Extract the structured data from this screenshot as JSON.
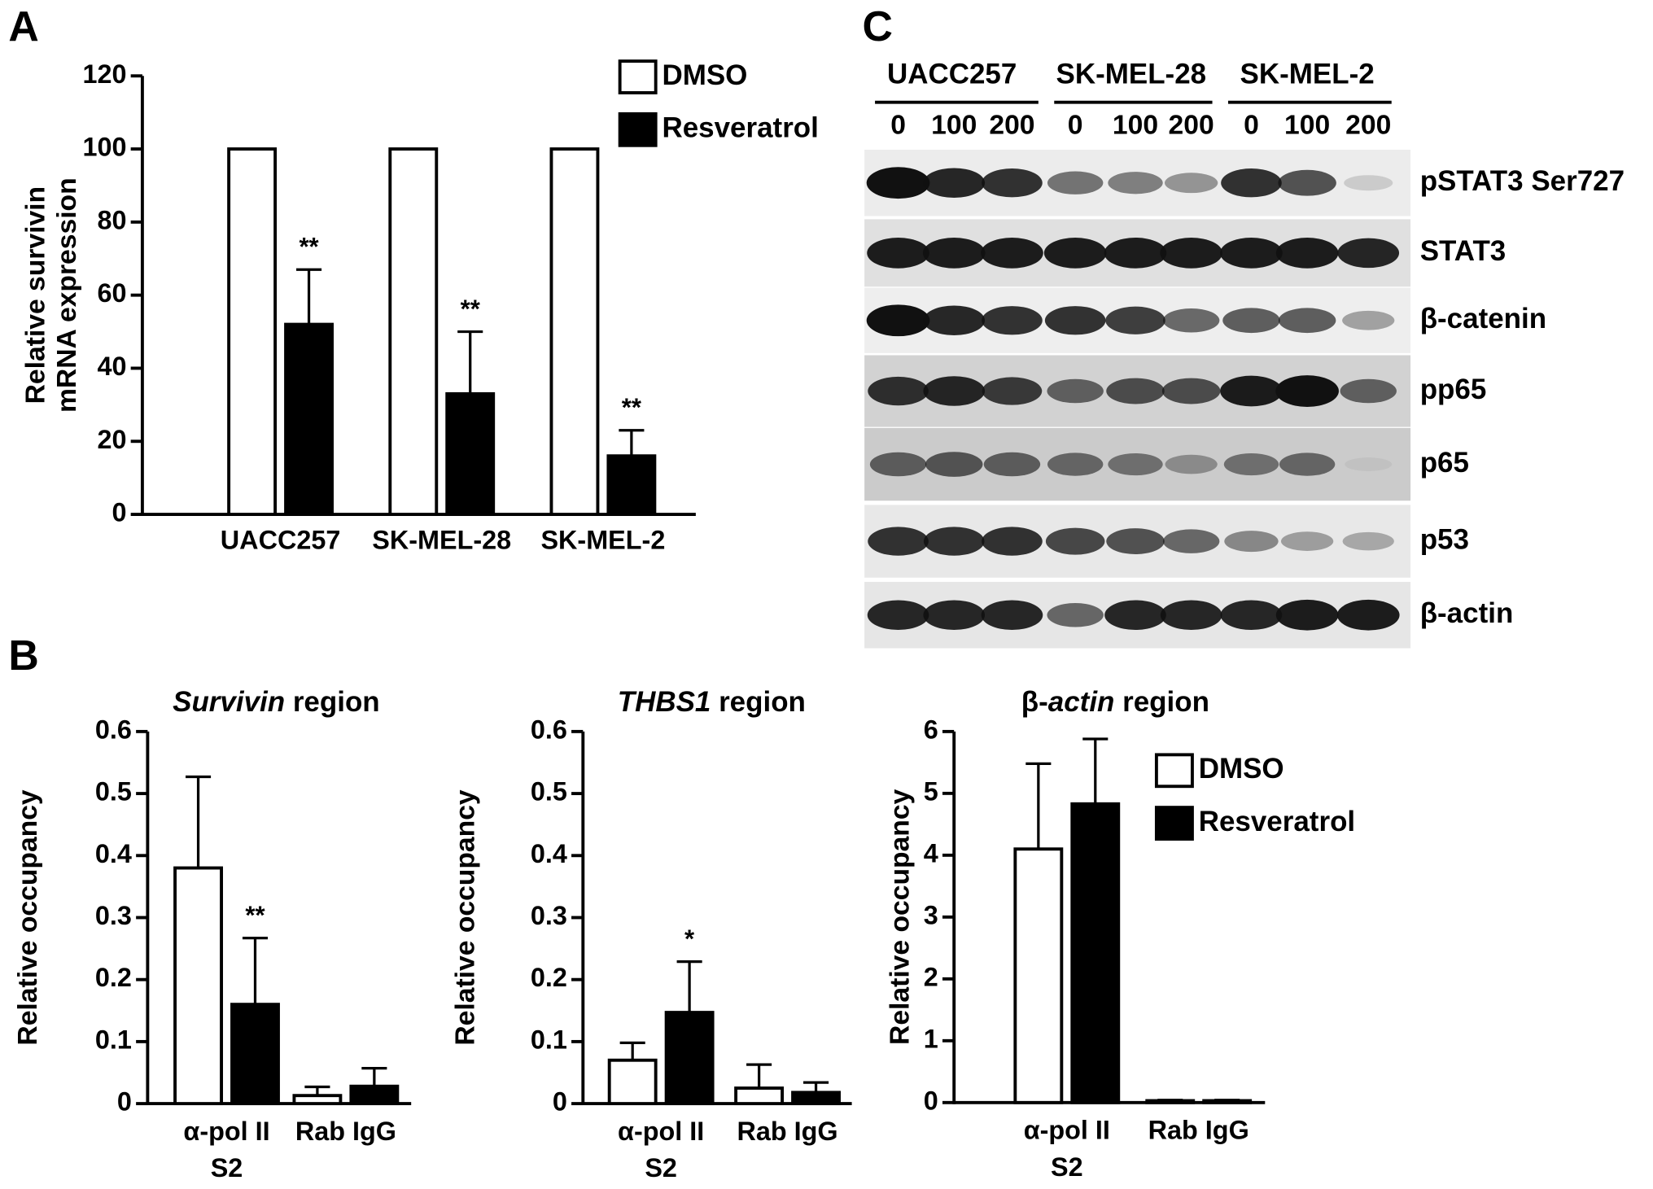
{
  "chart_data": [
    {
      "type": "bar",
      "panel": "A",
      "ylabel": [
        "Relative survivin",
        "mRNA expression"
      ],
      "categories": [
        "UACC257",
        "SK-MEL-28",
        "SK-MEL-2"
      ],
      "series": [
        {
          "name": "DMSO",
          "color": "#ffffff",
          "values": [
            100,
            100,
            100
          ]
        },
        {
          "name": "Resveratrol",
          "color": "#000000",
          "values": [
            52,
            33,
            16
          ],
          "errors": [
            15,
            17,
            7
          ],
          "significance": [
            "**",
            "**",
            "**"
          ]
        }
      ],
      "ylim": [
        0,
        120
      ],
      "yticks": [
        0,
        20,
        40,
        60,
        80,
        100,
        120
      ],
      "legend": "upper right"
    },
    {
      "type": "bar",
      "panel": "B",
      "title_parts": [
        {
          "text": "Survivin",
          "italic": true
        },
        {
          "text": " region",
          "italic": false
        }
      ],
      "ylabel": [
        "Relative occupancy"
      ],
      "categories": [
        [
          "α-pol II",
          "S2"
        ],
        [
          "Rab IgG"
        ]
      ],
      "series": [
        {
          "name": "DMSO",
          "color": "#ffffff",
          "values": [
            0.38,
            0.013
          ],
          "errors": [
            0.147,
            0.014
          ]
        },
        {
          "name": "Resveratrol",
          "color": "#000000",
          "values": [
            0.16,
            0.028
          ],
          "errors": [
            0.107,
            0.029
          ],
          "significance": [
            "**",
            null
          ]
        }
      ],
      "ylim": [
        0,
        0.6
      ],
      "yticks": [
        0,
        0.1,
        0.2,
        0.3,
        0.4,
        0.5,
        0.6
      ]
    },
    {
      "type": "bar",
      "title_parts": [
        {
          "text": "THBS1",
          "italic": true
        },
        {
          "text": " region",
          "italic": false
        }
      ],
      "ylabel": [
        "Relative occupancy"
      ],
      "categories": [
        [
          "α-pol II",
          "S2"
        ],
        [
          "Rab IgG"
        ]
      ],
      "series": [
        {
          "name": "DMSO",
          "color": "#ffffff",
          "values": [
            0.07,
            0.025
          ],
          "errors": [
            0.028,
            0.038
          ]
        },
        {
          "name": "Resveratrol",
          "color": "#000000",
          "values": [
            0.147,
            0.018
          ],
          "errors": [
            0.082,
            0.016
          ],
          "significance": [
            "*",
            null
          ]
        }
      ],
      "ylim": [
        0,
        0.6
      ],
      "yticks": [
        0,
        0.1,
        0.2,
        0.3,
        0.4,
        0.5,
        0.6
      ]
    },
    {
      "type": "bar",
      "title_parts": [
        {
          "text": "β-",
          "italic": false
        },
        {
          "text": "actin",
          "italic": true
        },
        {
          "text": " region",
          "italic": false
        }
      ],
      "ylabel": [
        "Relative occupancy"
      ],
      "categories": [
        [
          "α-pol II",
          "S2"
        ],
        [
          "Rab IgG"
        ]
      ],
      "series": [
        {
          "name": "DMSO",
          "color": "#ffffff",
          "values": [
            4.1,
            0.03
          ],
          "errors": [
            1.38,
            0.01
          ]
        },
        {
          "name": "Resveratrol",
          "color": "#000000",
          "values": [
            4.83,
            0.03
          ],
          "errors": [
            1.05,
            0.01
          ]
        }
      ],
      "ylim": [
        0,
        6
      ],
      "yticks": [
        0,
        1,
        2,
        3,
        4,
        5,
        6
      ],
      "legend": "upper right"
    }
  ],
  "blot": {
    "panel": "C",
    "groups": [
      {
        "name": "UACC257",
        "doses": [
          0,
          100,
          200
        ]
      },
      {
        "name": "SK-MEL-28",
        "doses": [
          0,
          100,
          200
        ]
      },
      {
        "name": "SK-MEL-2",
        "doses": [
          0,
          100,
          200
        ]
      }
    ],
    "proteins": [
      "pSTAT3 Ser727",
      "STAT3",
      "β-catenin",
      "pp65",
      "p65",
      "p53",
      "β-actin"
    ]
  }
}
